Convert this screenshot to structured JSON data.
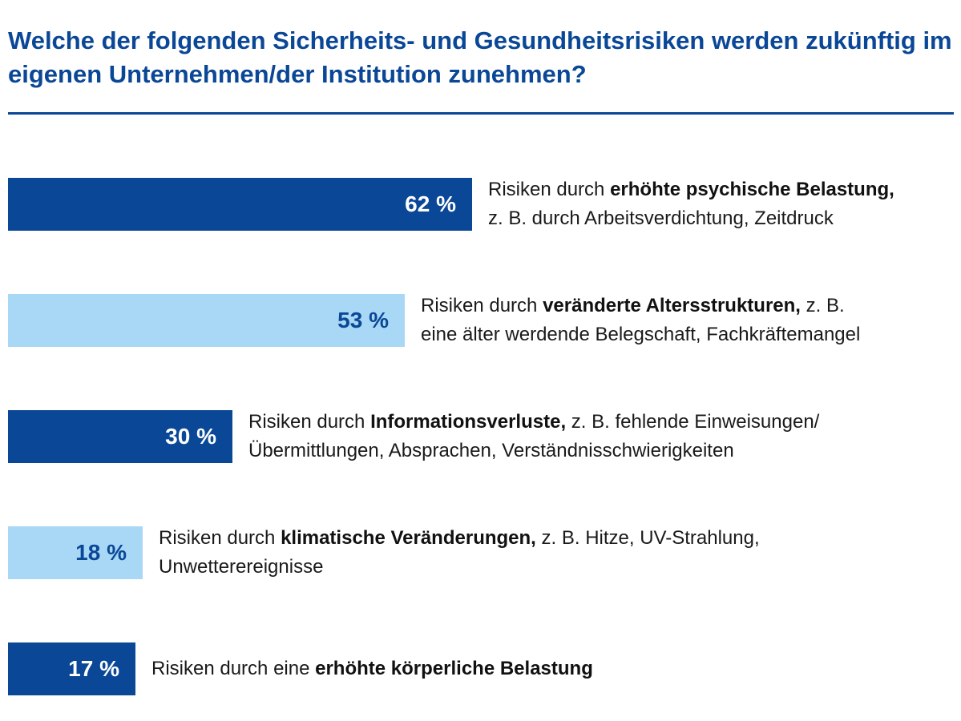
{
  "chart_data": {
    "type": "bar",
    "orientation": "horizontal",
    "title": "Welche der folgenden Sicherheits- und Gesundheitsrisiken werden zukünftig im eigenen Unternehmen/der Institution zunehmen?",
    "unit": "%",
    "xlim": [
      0,
      100
    ],
    "grid": false,
    "legend": "none",
    "bars": [
      {
        "value": 62,
        "value_label": "62 %",
        "label_prefix": "Risiken durch ",
        "label_bold": "erhöhte psychische Belastung,",
        "label_rest": "",
        "label_line2": "z. B. durch Arbeitsverdichtung, Zeitdruck",
        "color": "#0a4796",
        "text_color": "#ffffff"
      },
      {
        "value": 53,
        "value_label": "53 %",
        "label_prefix": "Risiken durch ",
        "label_bold": "veränderte Altersstrukturen,",
        "label_rest": " z. B.",
        "label_line2": "eine älter werdende Belegschaft, Fachkräftemangel",
        "color": "#a8d8f5",
        "text_color": "#0a4796"
      },
      {
        "value": 30,
        "value_label": "30 %",
        "label_prefix": "Risiken durch ",
        "label_bold": "Informationsverluste,",
        "label_rest": " z. B. fehlende Einweisungen/",
        "label_line2": "Übermittlungen, Absprachen, Verständnisschwierigkeiten",
        "color": "#0a4796",
        "text_color": "#ffffff"
      },
      {
        "value": 18,
        "value_label": "18 %",
        "label_prefix": "Risiken durch ",
        "label_bold": "klimatische Veränderungen,",
        "label_rest": " z. B. Hitze, UV-Strahlung,",
        "label_line2": "Unwetterereignisse",
        "color": "#a8d8f5",
        "text_color": "#0a4796"
      },
      {
        "value": 17,
        "value_label": "17 %",
        "label_prefix": "Risiken durch eine ",
        "label_bold": "erhöhte körperliche Belastung",
        "label_rest": "",
        "label_line2": "",
        "color": "#0a4796",
        "text_color": "#ffffff"
      }
    ]
  }
}
